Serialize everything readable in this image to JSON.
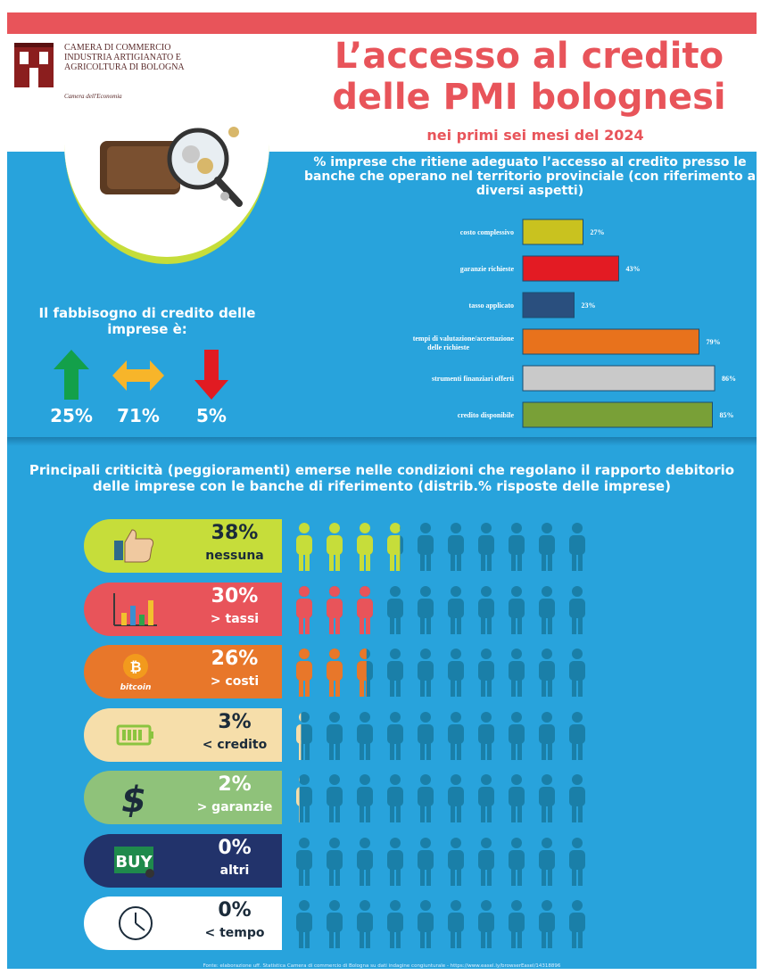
{
  "header": {
    "logo_lines": [
      "CAMERA DI COMMERCIO",
      "INDUSTRIA ARTIGIANATO E",
      "AGRICOLTURA DI BOLOGNA"
    ],
    "logo_sub": "Camera dell'Economia",
    "title_line1": "L’accesso al credito",
    "title_line2": "delle PMI bolognesi",
    "subtitle": "nei primi sei mesi del 2024"
  },
  "colors": {
    "accent": "#e8545a",
    "blue": "#28a3dc",
    "lime": "#c6dd3a"
  },
  "fabbisogno": {
    "title": "Il fabbisogno di credito delle imprese è:",
    "items": [
      {
        "icon": "arrow-up-icon",
        "value": "25%",
        "color": "#13a04a"
      },
      {
        "icon": "arrow-left-right-icon",
        "value": "71%",
        "color": "#f7b52a"
      },
      {
        "icon": "arrow-down-icon",
        "value": "5%",
        "color": "#e11b22"
      }
    ]
  },
  "chart_data": [
    {
      "type": "bar",
      "orientation": "horizontal",
      "title": "% imprese che ritiene adeguato l’accesso al credito presso le banche che operano nel territorio provinciale (con riferimento a diversi aspetti)",
      "categories": [
        "costo complessivo",
        "garanzie richieste",
        "tasso applicato",
        "tempi di valutazione/accettazione delle richieste",
        "strumenti finanziari offerti",
        "credito disponibile"
      ],
      "values": [
        27,
        43,
        23,
        79,
        86,
        85
      ],
      "value_labels": [
        "27%",
        "43%",
        "23%",
        "79%",
        "86%",
        "85%"
      ],
      "colors": [
        "#c9c21f",
        "#e31b23",
        "#2a4f7e",
        "#e8721c",
        "#c9c9c9",
        "#79a037"
      ],
      "xlim": [
        0,
        100
      ]
    },
    {
      "type": "bar",
      "title": "Principali criticità (peggioramenti) emerse nelle condizioni che regolano il rapporto debitorio delle imprese con le banche di riferimento (distrib.% risposte delle imprese)",
      "categories": [
        "nessuna",
        "> tassi",
        "> costi",
        "< credito",
        "> garanzie",
        "altri",
        "< tempo"
      ],
      "values": [
        38,
        30,
        26,
        3,
        2,
        0,
        0
      ],
      "value_labels": [
        "38%",
        "30%",
        "26%",
        "3%",
        "2%",
        "0%",
        "0%"
      ],
      "ylim": [
        0,
        100
      ]
    }
  ],
  "criticita": {
    "title": "Principali criticità (peggioramenti) emerse nelle condizioni che regolano il rapporto debitorio delle imprese con le banche di riferimento (distrib.% risposte delle imprese)",
    "rows": [
      {
        "pct": "38%",
        "label": "nessuna",
        "fraction": 0.38,
        "icon": "thumbs-up-icon",
        "pill_color": "#c6dd3a",
        "person_color": "#c6dd3a",
        "dark_text": true
      },
      {
        "pct": "30%",
        "label": "> tassi",
        "fraction": 0.3,
        "icon": "bar-chart-icon",
        "pill_color": "#e8545a",
        "person_color": "#e8545a",
        "dark_text": false
      },
      {
        "pct": "26%",
        "label": "> costi",
        "fraction": 0.26,
        "icon": "bitcoin-icon",
        "icon_text": "bitcoin",
        "pill_color": "#e8772a",
        "person_color": "#e8772a",
        "dark_text": false
      },
      {
        "pct": "3%",
        "label": "< credito",
        "fraction": 0.03,
        "icon": "battery-icon",
        "pill_color": "#f6deaa",
        "person_color": "#f6deaa",
        "dark_text": true
      },
      {
        "pct": "2%",
        "label": "> garanzie",
        "fraction": 0.02,
        "icon": "dollar-icon",
        "pill_color": "#8fc27a",
        "person_color": "#f6deaa",
        "dark_text": false
      },
      {
        "pct": "0%",
        "label": "altri",
        "fraction": 0.0,
        "icon": "buy-icon",
        "icon_text": "BUY",
        "pill_color": "#22336b",
        "person_color": "#22336b",
        "dark_text": false
      },
      {
        "pct": "0%",
        "label": "< tempo",
        "fraction": 0.0,
        "icon": "clock-icon",
        "pill_color": "#ffffff",
        "person_color": "#ffffff",
        "dark_text": true
      }
    ]
  },
  "footer": "Fonte: elaborazione uff. Statistica Camera di commercio di Bologna su dati indagine congiunturale - https://www.easel.ly/browserEasel/14318896"
}
